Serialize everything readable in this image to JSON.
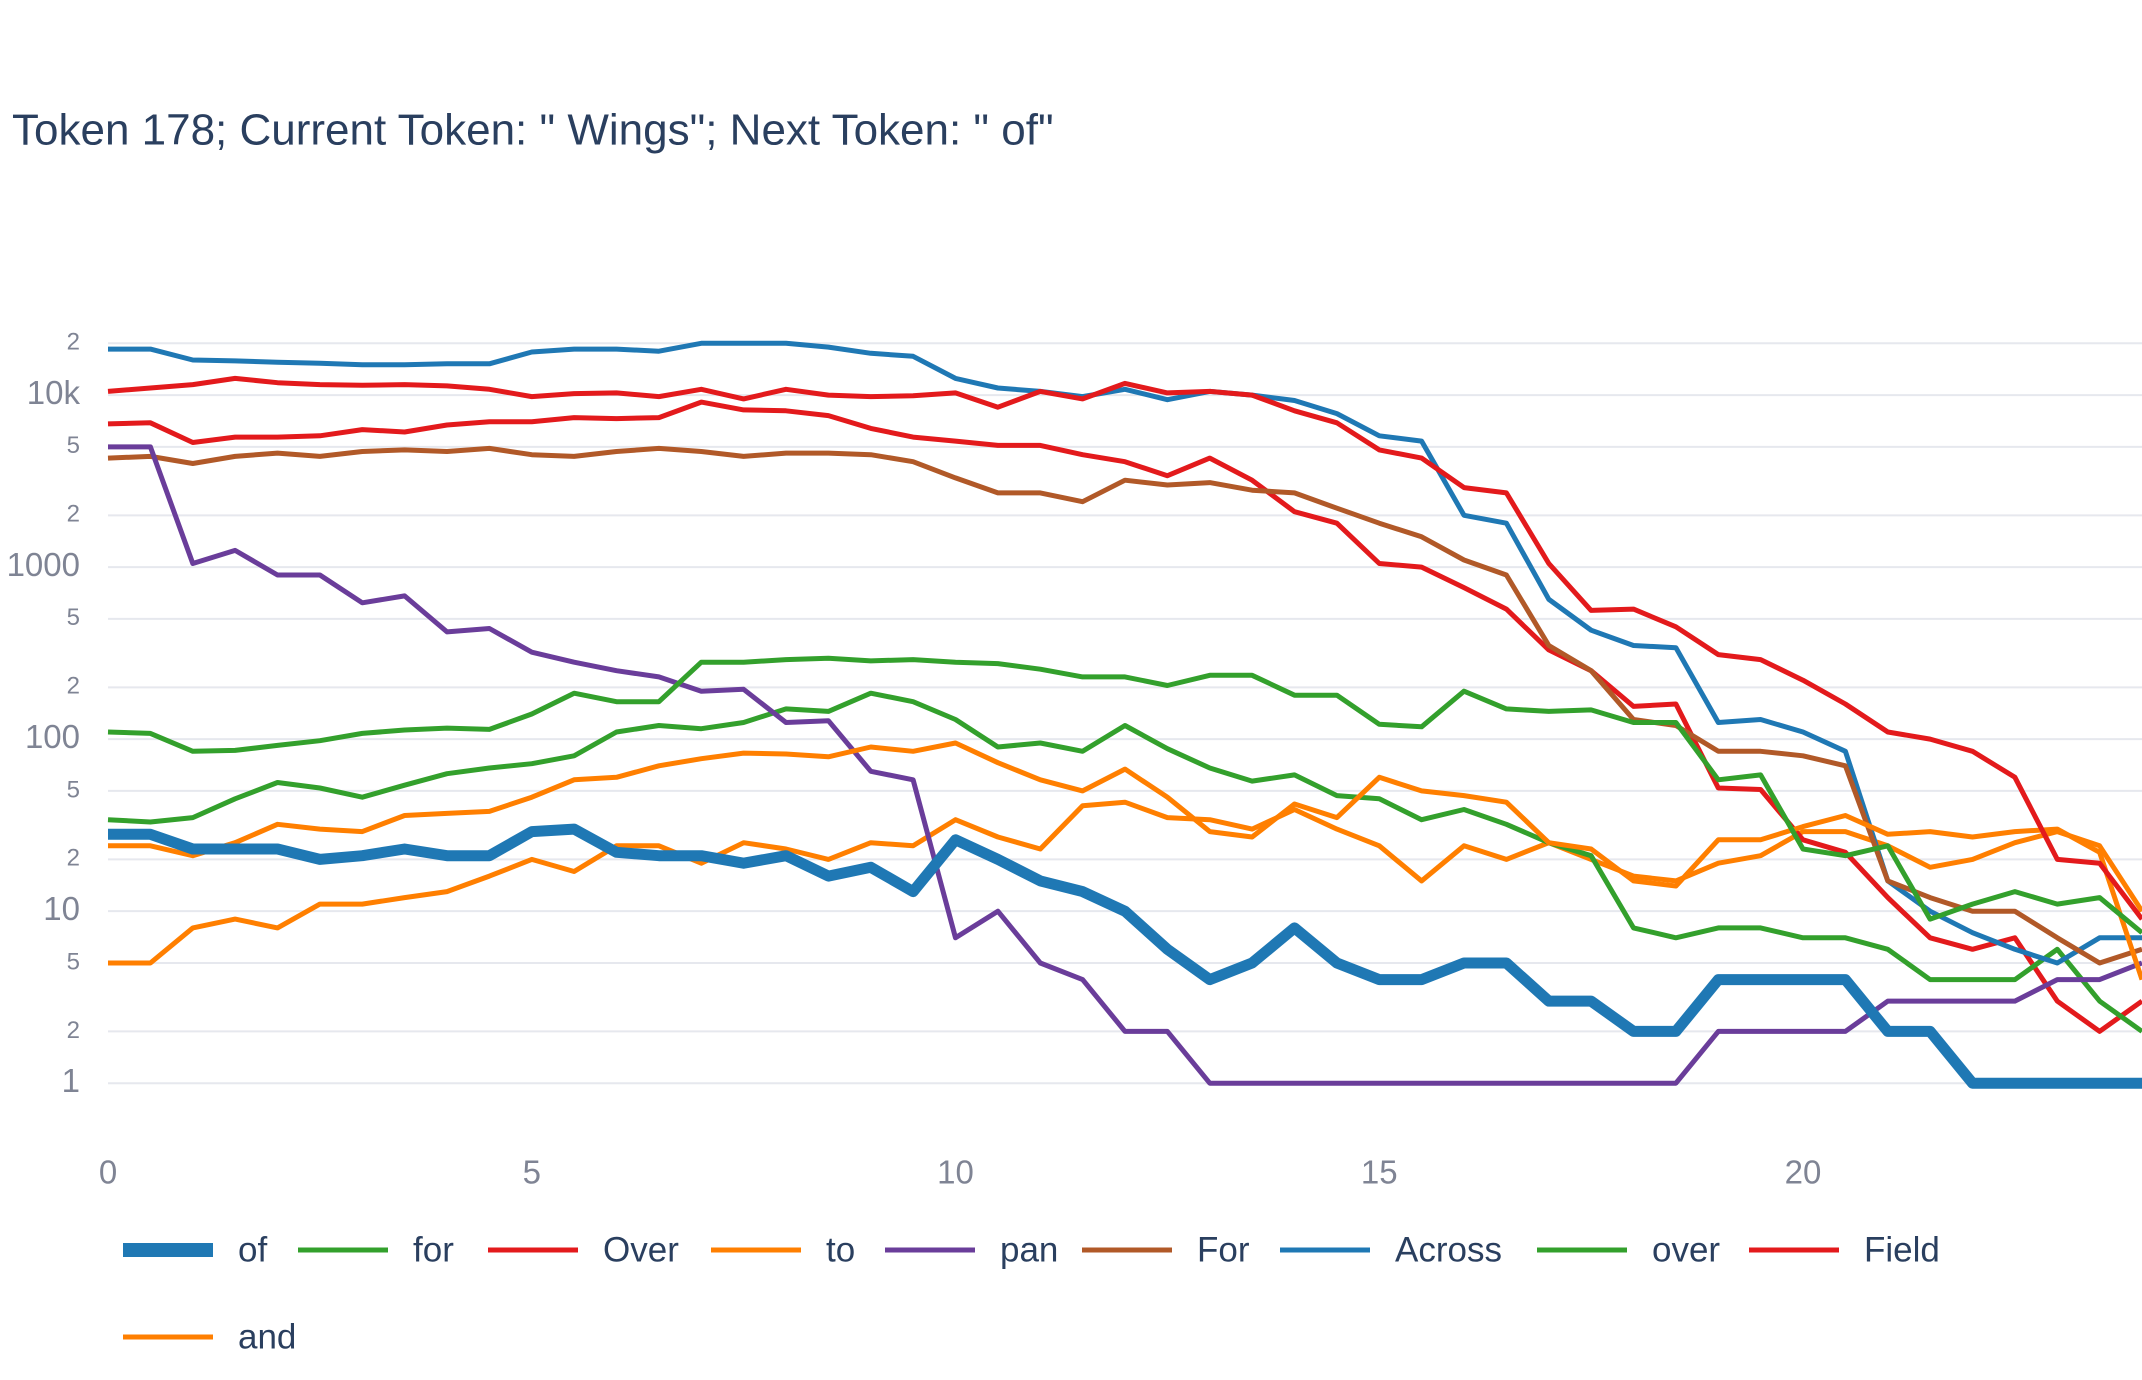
{
  "chart_data": {
    "type": "line",
    "title": "Token 178; Current Token: \" Wings\"; Next Token: \" of\"",
    "log_y": true,
    "grid": true,
    "legend_position": "bottom",
    "x": [
      0,
      0.5,
      1,
      1.5,
      2,
      2.5,
      3,
      3.5,
      4,
      4.5,
      5,
      5.5,
      6,
      6.5,
      7,
      7.5,
      8,
      8.5,
      9,
      9.5,
      10,
      10.5,
      11,
      11.5,
      12,
      12.5,
      13,
      13.5,
      14,
      14.5,
      15,
      15.5,
      16,
      16.5,
      17,
      17.5,
      18,
      18.5,
      19,
      19.5,
      20,
      20.5,
      21,
      21.5,
      22,
      22.5,
      23,
      23.5,
      24
    ],
    "xlim": [
      0,
      24
    ],
    "xticks": [
      0,
      5,
      10,
      15,
      20
    ],
    "ylim": [
      0.5,
      30000
    ],
    "yticks": [
      1,
      2,
      5,
      10,
      {
        "value": 20,
        "label": "2"
      },
      {
        "value": 50,
        "label": "5"
      },
      100,
      {
        "value": 200,
        "label": "2"
      },
      {
        "value": 500,
        "label": "5"
      },
      1000,
      {
        "value": 2000,
        "label": "2"
      },
      {
        "value": 5000,
        "label": "5"
      },
      {
        "value": 10000,
        "label": "10k"
      },
      {
        "value": 20000,
        "label": "2"
      }
    ],
    "series": [
      {
        "name": "of",
        "color": "#1f78b4",
        "values": [
          28,
          28,
          23,
          23,
          23,
          20,
          21,
          23,
          21,
          21,
          29,
          30,
          22,
          21,
          21,
          19,
          21,
          16,
          18,
          13,
          26,
          20,
          15,
          13,
          10,
          6,
          4,
          5,
          8,
          5,
          4,
          4,
          5,
          5,
          3,
          3,
          2,
          2,
          4,
          4,
          4,
          4,
          2,
          2,
          1,
          1,
          1,
          1,
          1
        ]
      },
      {
        "name": "for",
        "color": "#33a02c",
        "values": [
          110,
          108,
          85,
          86,
          92,
          98,
          108,
          113,
          116,
          114,
          140,
          185,
          165,
          165,
          280,
          280,
          290,
          295,
          285,
          290,
          280,
          275,
          255,
          230,
          230,
          205,
          235,
          235,
          180,
          180,
          122,
          118,
          190,
          150,
          145,
          148,
          125,
          125,
          58,
          62,
          23,
          21,
          24,
          9,
          11,
          13,
          11,
          12,
          7.5
        ]
      },
      {
        "name": "Over",
        "color": "#e31a1c",
        "values": [
          10500,
          11000,
          11500,
          12500,
          11800,
          11500,
          11400,
          11500,
          11300,
          10800,
          9800,
          10200,
          10300,
          9800,
          10800,
          9500,
          10800,
          10000,
          9800,
          9900,
          10300,
          8500,
          10500,
          9500,
          11700,
          10300,
          10500,
          10000,
          8100,
          6900,
          4800,
          4300,
          2900,
          2700,
          1050,
          560,
          570,
          450,
          310,
          290,
          220,
          160,
          110,
          100,
          85,
          60,
          20,
          19,
          9
        ]
      },
      {
        "name": "to",
        "color": "#ff7f00",
        "values": [
          24,
          24,
          21,
          25,
          32,
          30,
          29,
          36,
          37,
          38,
          46,
          58,
          60,
          70,
          77,
          83,
          82,
          79,
          90,
          85,
          95,
          73,
          58,
          50,
          67,
          46,
          29,
          27,
          42,
          35,
          60,
          50,
          47,
          43,
          25,
          23,
          15,
          14,
          26,
          26,
          31,
          36,
          28,
          29,
          27,
          29,
          30,
          22,
          4
        ]
      },
      {
        "name": "pan",
        "color": "#6a3d9a",
        "values": [
          5000,
          5000,
          1050,
          1250,
          900,
          900,
          620,
          680,
          420,
          440,
          320,
          280,
          250,
          230,
          190,
          195,
          125,
          128,
          65,
          58,
          7,
          10,
          5,
          4,
          2,
          2,
          1,
          1,
          1,
          1,
          1,
          1,
          1,
          1,
          1,
          1,
          1,
          1,
          2,
          2,
          2,
          2,
          3,
          3,
          3,
          3,
          4,
          4,
          5
        ]
      },
      {
        "name": "For",
        "color": "#b15928",
        "values": [
          4300,
          4400,
          4000,
          4400,
          4600,
          4400,
          4700,
          4800,
          4700,
          4900,
          4500,
          4400,
          4700,
          4900,
          4700,
          4400,
          4600,
          4600,
          4500,
          4100,
          3300,
          2700,
          2700,
          2400,
          3200,
          3000,
          3100,
          2800,
          2700,
          2200,
          1800,
          1500,
          1100,
          900,
          350,
          250,
          130,
          120,
          85,
          85,
          80,
          70,
          15,
          12,
          10,
          10,
          7,
          5,
          6
        ]
      },
      {
        "name": "Across",
        "color": "#1f78b4",
        "values": [
          18500,
          18500,
          16000,
          15800,
          15500,
          15300,
          15000,
          15000,
          15200,
          15200,
          17800,
          18500,
          18500,
          18000,
          20000,
          20000,
          20000,
          19000,
          17500,
          16800,
          12500,
          11000,
          10500,
          9800,
          10800,
          9400,
          10500,
          10000,
          9300,
          7800,
          5800,
          5400,
          2000,
          1800,
          650,
          430,
          350,
          340,
          125,
          130,
          110,
          85,
          15,
          10,
          7.5,
          6,
          5,
          7,
          7
        ]
      },
      {
        "name": "over",
        "color": "#33a02c",
        "values": [
          34,
          33,
          35,
          45,
          56,
          52,
          46,
          54,
          63,
          68,
          72,
          80,
          110,
          120,
          115,
          125,
          150,
          145,
          185,
          165,
          130,
          90,
          95,
          85,
          120,
          88,
          68,
          57,
          62,
          47,
          45,
          34,
          39,
          32,
          25,
          21,
          8,
          7,
          8,
          8,
          7,
          7,
          6,
          4,
          4,
          4,
          6,
          3,
          2
        ]
      },
      {
        "name": "Field",
        "color": "#e31a1c",
        "values": [
          6800,
          6900,
          5300,
          5700,
          5700,
          5800,
          6300,
          6100,
          6700,
          7000,
          7000,
          7400,
          7300,
          7400,
          9100,
          8200,
          8100,
          7600,
          6400,
          5700,
          5400,
          5100,
          5100,
          4500,
          4100,
          3400,
          4300,
          3200,
          2100,
          1800,
          1050,
          1000,
          760,
          570,
          330,
          250,
          155,
          160,
          52,
          51,
          26,
          22,
          12,
          7,
          6,
          7,
          3,
          2,
          3
        ]
      },
      {
        "name": "and",
        "color": "#ff7f00",
        "values": [
          5,
          5,
          8,
          9,
          8,
          11,
          11,
          12,
          13,
          16,
          20,
          17,
          24,
          24,
          19,
          25,
          23,
          20,
          25,
          24,
          34,
          27,
          23,
          41,
          43,
          35,
          34,
          30,
          39,
          30,
          24,
          15,
          24,
          20,
          25,
          20,
          16,
          15,
          19,
          21,
          29,
          29,
          24,
          18,
          20,
          25,
          29,
          24,
          10
        ]
      }
    ]
  }
}
